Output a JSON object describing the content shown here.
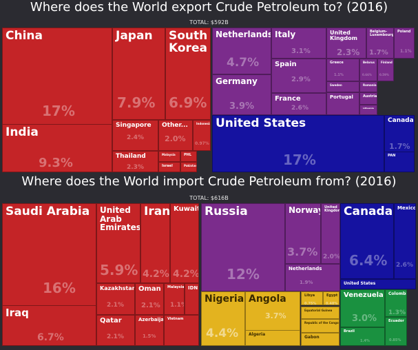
{
  "colors": {
    "asia": "#c42427",
    "europe": "#7b2c8c",
    "namerica": "#1512a0",
    "africa": "#e3b31f",
    "samerica": "#1a9140",
    "background": "#2b2b31"
  },
  "export_chart": {
    "title": "Where does the World export Crude Petroleum to? (2016)",
    "total": "TOTAL: $592B"
  },
  "import_chart": {
    "title": "Where does the World import Crude Petroleum from? (2016)",
    "total": "TOTAL: $616B"
  },
  "chart_data": [
    {
      "type": "treemap",
      "title": "Where does the World export Crude Petroleum to? (2016)",
      "total": "TOTAL: $592B",
      "cells": [
        {
          "label": "China",
          "value": "17%",
          "region": "asia"
        },
        {
          "label": "India",
          "value": "9.3%",
          "region": "asia"
        },
        {
          "label": "Japan",
          "value": "7.9%",
          "region": "asia"
        },
        {
          "label": "South Korea",
          "value": "6.9%",
          "region": "asia"
        },
        {
          "label": "Singapore",
          "value": "2.4%",
          "region": "asia"
        },
        {
          "label": "Other...",
          "value": "2.0%",
          "region": "asia"
        },
        {
          "label": "Indonesia",
          "value": "0.97%",
          "region": "asia"
        },
        {
          "label": "Thailand",
          "value": "2.3%",
          "region": "asia"
        },
        {
          "label": "Malaysia",
          "value": "",
          "region": "asia"
        },
        {
          "label": "PHL",
          "value": "",
          "region": "asia"
        },
        {
          "label": "Israel",
          "value": "",
          "region": "asia"
        },
        {
          "label": "Pakistan",
          "value": "",
          "region": "asia"
        },
        {
          "label": "Netherlands",
          "value": "4.7%",
          "region": "europe"
        },
        {
          "label": "Germany",
          "value": "3.9%",
          "region": "europe"
        },
        {
          "label": "Italy",
          "value": "3.1%",
          "region": "europe"
        },
        {
          "label": "Spain",
          "value": "2.9%",
          "region": "europe"
        },
        {
          "label": "France",
          "value": "2.6%",
          "region": "europe"
        },
        {
          "label": "United Kingdom",
          "value": "2.3%",
          "region": "europe"
        },
        {
          "label": "Belgium-Luxembourg",
          "value": "1.7%",
          "region": "europe"
        },
        {
          "label": "Poland",
          "value": "1.1%",
          "region": "europe"
        },
        {
          "label": "Greece",
          "value": "1.1%",
          "region": "europe"
        },
        {
          "label": "Belarus",
          "value": "0.66%",
          "region": "europe"
        },
        {
          "label": "Finland",
          "value": "0.59%",
          "region": "europe"
        },
        {
          "label": "Sweden",
          "value": "",
          "region": "europe"
        },
        {
          "label": "Portugal",
          "value": "",
          "region": "europe"
        },
        {
          "label": "Romania",
          "value": "",
          "region": "europe"
        },
        {
          "label": "Austria",
          "value": "",
          "region": "europe"
        },
        {
          "label": "Lithuania",
          "value": "",
          "region": "europe"
        },
        {
          "label": "United States",
          "value": "17%",
          "region": "namerica"
        },
        {
          "label": "Canada",
          "value": "1.7%",
          "region": "namerica"
        },
        {
          "label": "PAN",
          "value": "",
          "region": "namerica"
        }
      ]
    },
    {
      "type": "treemap",
      "title": "Where does the World import Crude Petroleum from? (2016)",
      "total": "TOTAL: $616B",
      "cells": [
        {
          "label": "Saudi Arabia",
          "value": "16%",
          "region": "asia"
        },
        {
          "label": "Iraq",
          "value": "6.7%",
          "region": "asia"
        },
        {
          "label": "United Arab Emirates",
          "value": "5.9%",
          "region": "asia"
        },
        {
          "label": "Iran",
          "value": "4.2%",
          "region": "asia"
        },
        {
          "label": "Kuwait",
          "value": "4.2%",
          "region": "asia"
        },
        {
          "label": "Kazakhstan",
          "value": "2.1%",
          "region": "asia"
        },
        {
          "label": "Oman",
          "value": "2.1%",
          "region": "asia"
        },
        {
          "label": "Malaysia",
          "value": "1.1%",
          "region": "asia"
        },
        {
          "label": "IDN",
          "value": "",
          "region": "asia"
        },
        {
          "label": "Qatar",
          "value": "2.1%",
          "region": "asia"
        },
        {
          "label": "Azerbaijan",
          "value": "1.5%",
          "region": "asia"
        },
        {
          "label": "Vietnam",
          "value": "",
          "region": "asia"
        },
        {
          "label": "Russia",
          "value": "12%",
          "region": "europe"
        },
        {
          "label": "Norway",
          "value": "3.7%",
          "region": "europe"
        },
        {
          "label": "United Kingdom",
          "value": "2.0%",
          "region": "europe"
        },
        {
          "label": "Netherlands",
          "value": "1.9%",
          "region": "europe"
        },
        {
          "label": "Nigeria",
          "value": "4.4%",
          "region": "africa"
        },
        {
          "label": "Angola",
          "value": "3.7%",
          "region": "africa"
        },
        {
          "label": "Algeria",
          "value": "",
          "region": "africa"
        },
        {
          "label": "Libya",
          "value": "0.75%",
          "region": "africa"
        },
        {
          "label": "Egypt",
          "value": "0.48%",
          "region": "africa"
        },
        {
          "label": "Equatorial Guinea",
          "value": "",
          "region": "africa"
        },
        {
          "label": "Republic of the Congo",
          "value": "",
          "region": "africa"
        },
        {
          "label": "Gabon",
          "value": "",
          "region": "africa"
        },
        {
          "label": "Canada",
          "value": "6.4%",
          "region": "namerica"
        },
        {
          "label": "Mexico",
          "value": "2.6%",
          "region": "namerica"
        },
        {
          "label": "United States",
          "value": "",
          "region": "namerica"
        },
        {
          "label": "Venezuela",
          "value": "3.0%",
          "region": "samerica"
        },
        {
          "label": "Colombia",
          "value": "1.3%",
          "region": "samerica"
        },
        {
          "label": "Brazil",
          "value": "1.4%",
          "region": "samerica"
        },
        {
          "label": "Ecuador",
          "value": "0.85%",
          "region": "samerica"
        }
      ]
    }
  ]
}
